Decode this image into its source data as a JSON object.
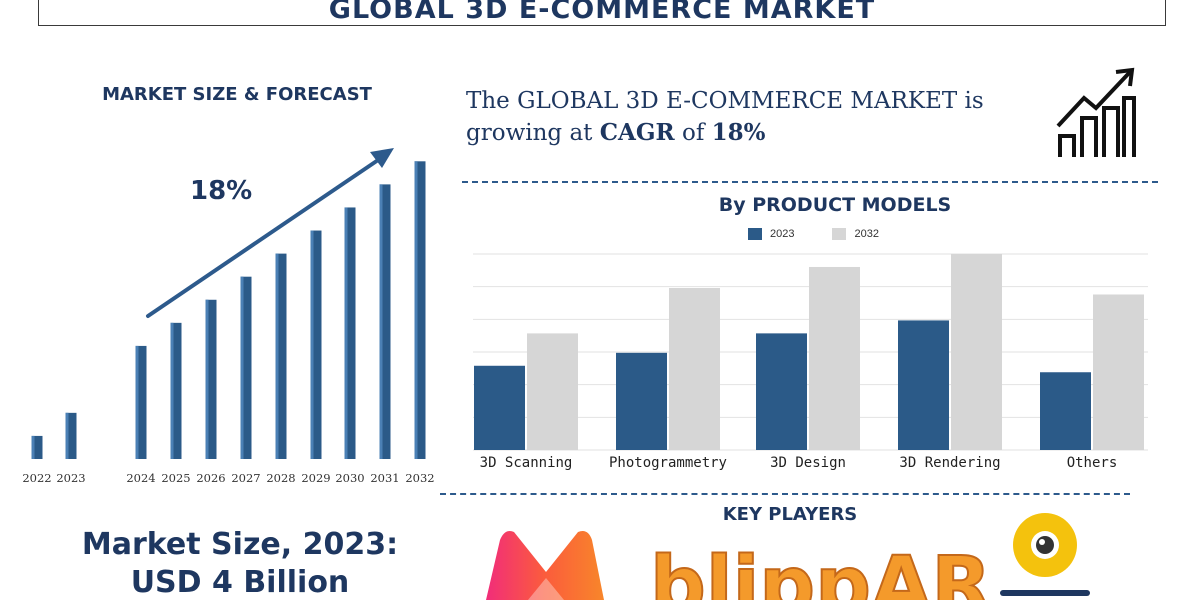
{
  "header": {
    "title": "GLOBAL 3D E-COMMERCE MARKET"
  },
  "left": {
    "heading": "MARKET SIZE & FORECAST",
    "cagr_label": "18%",
    "market_size_line1": "Market Size, 2023:",
    "market_size_line2": "USD 4 Billion"
  },
  "growth": {
    "prefix": "The GLOBAL 3D E-COMMERCE MARKET is",
    "growing": "growing at ",
    "cagr_word": "CAGR",
    "of": " of ",
    "cagr_value": "18%"
  },
  "key_players": {
    "heading": "KEY PLAYERS",
    "blippar": "blippAR"
  },
  "colors": {
    "navy": "#1e3760",
    "bar_blue": "#2b5a88",
    "bar_grey": "#d6d6d6",
    "arrow": "#2d5a8c"
  },
  "icons": [
    "growth-chart-icon",
    "myntra-logo",
    "blippar-logo",
    "marxent-logo"
  ],
  "chart_data": [
    {
      "type": "bar",
      "title": "MARKET SIZE & FORECAST",
      "categories": [
        "2022",
        "2023",
        "2024",
        "2025",
        "2026",
        "2027",
        "2028",
        "2029",
        "2030",
        "2031",
        "2032"
      ],
      "values": [
        1.0,
        2.0,
        4.9,
        5.9,
        6.9,
        7.9,
        8.9,
        9.9,
        10.9,
        11.9,
        12.9
      ],
      "annotation": "18%",
      "ylim": [
        0,
        13.5
      ]
    },
    {
      "type": "bar",
      "title": "By PRODUCT MODELS",
      "categories": [
        "3D Scanning",
        "Photogrammetry",
        "3D Design",
        "3D Rendering",
        "Others"
      ],
      "series": [
        {
          "name": "2023",
          "values": [
            2.6,
            3.0,
            3.6,
            4.0,
            2.4
          ]
        },
        {
          "name": "2032",
          "values": [
            3.6,
            5.0,
            5.65,
            6.05,
            4.8
          ]
        }
      ],
      "ylim": [
        0,
        6.05
      ],
      "grid": true,
      "legend": "top"
    }
  ]
}
